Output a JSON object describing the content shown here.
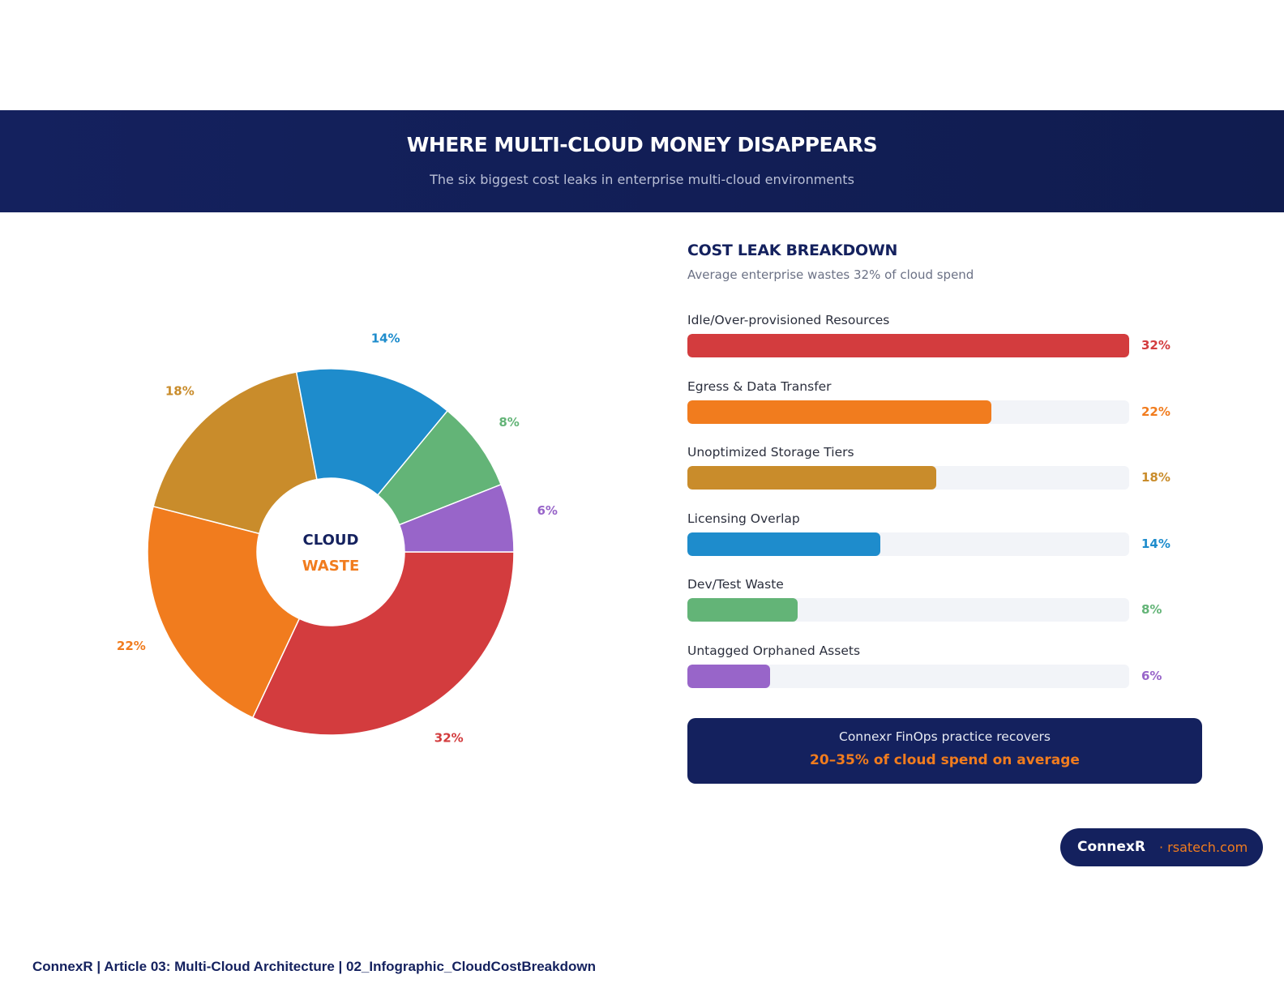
{
  "header": {
    "title": "WHERE MULTI-CLOUD MONEY DISAPPEARS",
    "subtitle": "The six biggest cost leaks in enterprise multi-cloud environments"
  },
  "donut": {
    "center_line1": "CLOUD",
    "center_line2": "WASTE",
    "center_line1_color": "#14215e",
    "center_line2_color": "#f17c1e"
  },
  "breakdown": {
    "title": "COST LEAK BREAKDOWN",
    "subtitle": "Average enterprise wastes 32% of cloud spend"
  },
  "chart_data": {
    "type": "pie",
    "title": "COST LEAK BREAKDOWN",
    "categories": [
      "Idle/Over-provisioned Resources",
      "Egress & Data Transfer",
      "Unoptimized Storage Tiers",
      "Licensing Overlap",
      "Dev/Test Waste",
      "Untagged Orphaned Assets"
    ],
    "values": [
      32,
      22,
      18,
      14,
      8,
      6
    ],
    "value_labels": [
      "32%",
      "22%",
      "18%",
      "14%",
      "8%",
      "6%"
    ],
    "colors": [
      "#d33c3e",
      "#f17c1e",
      "#c98c2b",
      "#1e8ccc",
      "#63b477",
      "#9865c9"
    ],
    "bar_max": 32,
    "unit": "%"
  },
  "callout": {
    "line1": "Connexr FinOps practice recovers",
    "line2": "20–35% of cloud spend on average"
  },
  "brand": {
    "name": "ConnexR",
    "site": "· rsatech.com"
  },
  "footer": {
    "text": "ConnexR | Article 03: Multi-Cloud Architecture | 02_Infographic_CloudCostBreakdown"
  }
}
